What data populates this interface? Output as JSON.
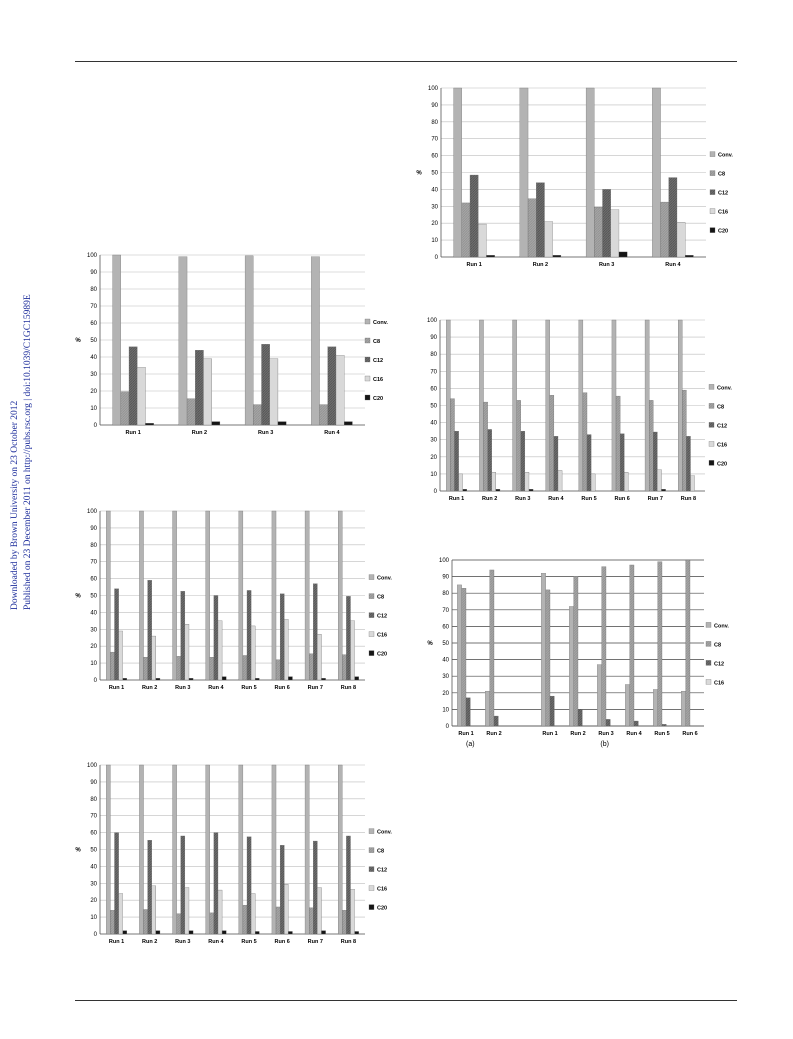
{
  "sidebar": {
    "line1": "Downloaded by Brown University on 23 October 2012",
    "line2": "Published on 23 December 2011 on http://pubs.rsc.org | doi:10.1039/C1GC15989E",
    "color": "#1f2f9c"
  },
  "colors": {
    "Conv.": "#b3b3b3",
    "C8": "#a5a5a5",
    "C12": "#6e6e6e",
    "C16": "#e6e6e6",
    "C20": "#151515"
  },
  "chart_data": [
    {
      "id": "chart-top-left-mid",
      "type": "bar",
      "ylabel": "%",
      "ylim": [
        0,
        100
      ],
      "yticks": [
        0,
        10,
        20,
        30,
        40,
        50,
        60,
        70,
        80,
        90,
        100
      ],
      "grid": true,
      "legend": "right",
      "categories": [
        "Run 1",
        "Run 2",
        "Run 3",
        "Run 4"
      ],
      "series": [
        {
          "name": "Conv.",
          "values": [
            100,
            99,
            99.5,
            99
          ]
        },
        {
          "name": "C8",
          "values": [
            19.5,
            15.5,
            12,
            12
          ]
        },
        {
          "name": "C12",
          "values": [
            46,
            44,
            47.5,
            46
          ]
        },
        {
          "name": "C16",
          "values": [
            34,
            39,
            39,
            41
          ]
        },
        {
          "name": "C20",
          "values": [
            1,
            2,
            2,
            2
          ]
        }
      ]
    },
    {
      "id": "chart-top-right",
      "type": "bar",
      "ylabel": "%",
      "ylim": [
        0,
        100
      ],
      "yticks": [
        0,
        10,
        20,
        30,
        40,
        50,
        60,
        70,
        80,
        90,
        100
      ],
      "grid": true,
      "legend": "right",
      "categories": [
        "Run 1",
        "Run 2",
        "Run 3",
        "Run 4"
      ],
      "series": [
        {
          "name": "Conv.",
          "values": [
            100,
            100,
            100,
            100
          ]
        },
        {
          "name": "C8",
          "values": [
            32,
            34.5,
            29.5,
            32.5
          ]
        },
        {
          "name": "C12",
          "values": [
            48.5,
            44,
            40,
            47
          ]
        },
        {
          "name": "C16",
          "values": [
            19.5,
            21,
            28,
            20.5
          ]
        },
        {
          "name": "C20",
          "values": [
            1,
            1,
            3,
            1
          ]
        }
      ]
    },
    {
      "id": "chart-middle-right",
      "type": "bar",
      "ylabel": "",
      "ylim": [
        0,
        100
      ],
      "yticks": [
        0,
        10,
        20,
        30,
        40,
        50,
        60,
        70,
        80,
        90,
        100
      ],
      "grid": true,
      "legend": "right",
      "categories": [
        "Run 1",
        "Run 2",
        "Run 3",
        "Run 4",
        "Run 5",
        "Run 6",
        "Run 7",
        "Run 8"
      ],
      "series": [
        {
          "name": "Conv.",
          "values": [
            100,
            100,
            100,
            100,
            100,
            100,
            100,
            100
          ]
        },
        {
          "name": "C8",
          "values": [
            54,
            52,
            53,
            56,
            57.5,
            55.5,
            53,
            59
          ]
        },
        {
          "name": "C12",
          "values": [
            35,
            36,
            35,
            32,
            33,
            33.5,
            34.5,
            32
          ]
        },
        {
          "name": "C16",
          "values": [
            10,
            11,
            11,
            12,
            10,
            11,
            12.5,
            9
          ]
        },
        {
          "name": "C20",
          "values": [
            1,
            1,
            1,
            0,
            0,
            0,
            1,
            0
          ]
        }
      ]
    },
    {
      "id": "chart-middle-left",
      "type": "bar",
      "ylabel": "%",
      "ylim": [
        0,
        100
      ],
      "yticks": [
        0,
        10,
        20,
        30,
        40,
        50,
        60,
        70,
        80,
        90,
        100
      ],
      "grid": true,
      "legend": "right",
      "categories": [
        "Run 1",
        "Run 2",
        "Run 3",
        "Run 4",
        "Run 5",
        "Run 6",
        "Run 7",
        "Run 8"
      ],
      "series": [
        {
          "name": "Conv.",
          "values": [
            100,
            100,
            100,
            100,
            100,
            100,
            100,
            100
          ]
        },
        {
          "name": "C8",
          "values": [
            16.5,
            13.5,
            14,
            13.5,
            14.5,
            12,
            15.5,
            15
          ]
        },
        {
          "name": "C12",
          "values": [
            54,
            59,
            52.5,
            50,
            53,
            51,
            57,
            49.5
          ]
        },
        {
          "name": "C16",
          "values": [
            29,
            26,
            33,
            35,
            32,
            36,
            27,
            35
          ]
        },
        {
          "name": "C20",
          "values": [
            1,
            1,
            1,
            2,
            1,
            2,
            1,
            2
          ]
        }
      ]
    },
    {
      "id": "chart-bottom-right",
      "type": "bar",
      "ylabel": "%",
      "ylim": [
        0,
        100
      ],
      "yticks": [
        0,
        10,
        20,
        30,
        40,
        50,
        60,
        70,
        80,
        90,
        100
      ],
      "grid": true,
      "legend": "right",
      "categories": [
        "Run 1",
        "Run 2",
        "",
        "Run 1",
        "Run 2",
        "Run 3",
        "Run 4",
        "Run 5",
        "Run 6"
      ],
      "subpanel_labels": [
        "(a)",
        "(b)"
      ],
      "series": [
        {
          "name": "Conv.",
          "values": [
            85,
            21,
            null,
            92,
            72,
            37,
            25,
            22,
            21
          ]
        },
        {
          "name": "C8",
          "values": [
            83,
            94,
            null,
            82,
            90,
            96,
            97,
            99,
            100
          ]
        },
        {
          "name": "C12",
          "values": [
            17,
            6,
            null,
            18,
            10,
            4,
            3,
            1,
            0
          ]
        },
        {
          "name": "C16",
          "values": [
            0,
            0,
            null,
            0,
            0,
            0,
            0,
            0,
            0
          ]
        }
      ]
    },
    {
      "id": "chart-bottom-left",
      "type": "bar",
      "ylabel": "%",
      "ylim": [
        0,
        100
      ],
      "yticks": [
        0,
        10,
        20,
        30,
        40,
        50,
        60,
        70,
        80,
        90,
        100
      ],
      "grid": true,
      "legend": "right",
      "categories": [
        "Run 1",
        "Run 2",
        "Run 3",
        "Run 4",
        "Run 5",
        "Run 6",
        "Run 7",
        "Run 8"
      ],
      "series": [
        {
          "name": "Conv.",
          "values": [
            100,
            100,
            100,
            100,
            100,
            100,
            100,
            100
          ]
        },
        {
          "name": "C8",
          "values": [
            14,
            14.5,
            12,
            12.5,
            17,
            16,
            15.5,
            14
          ]
        },
        {
          "name": "C12",
          "values": [
            60,
            55.5,
            58,
            60,
            57.5,
            52.5,
            55,
            58
          ]
        },
        {
          "name": "C16",
          "values": [
            24,
            28.5,
            27.5,
            26,
            24,
            29.5,
            27.5,
            26.5
          ]
        },
        {
          "name": "C20",
          "values": [
            2,
            2,
            2,
            2,
            1.5,
            1.5,
            2,
            1.5
          ]
        }
      ]
    }
  ]
}
